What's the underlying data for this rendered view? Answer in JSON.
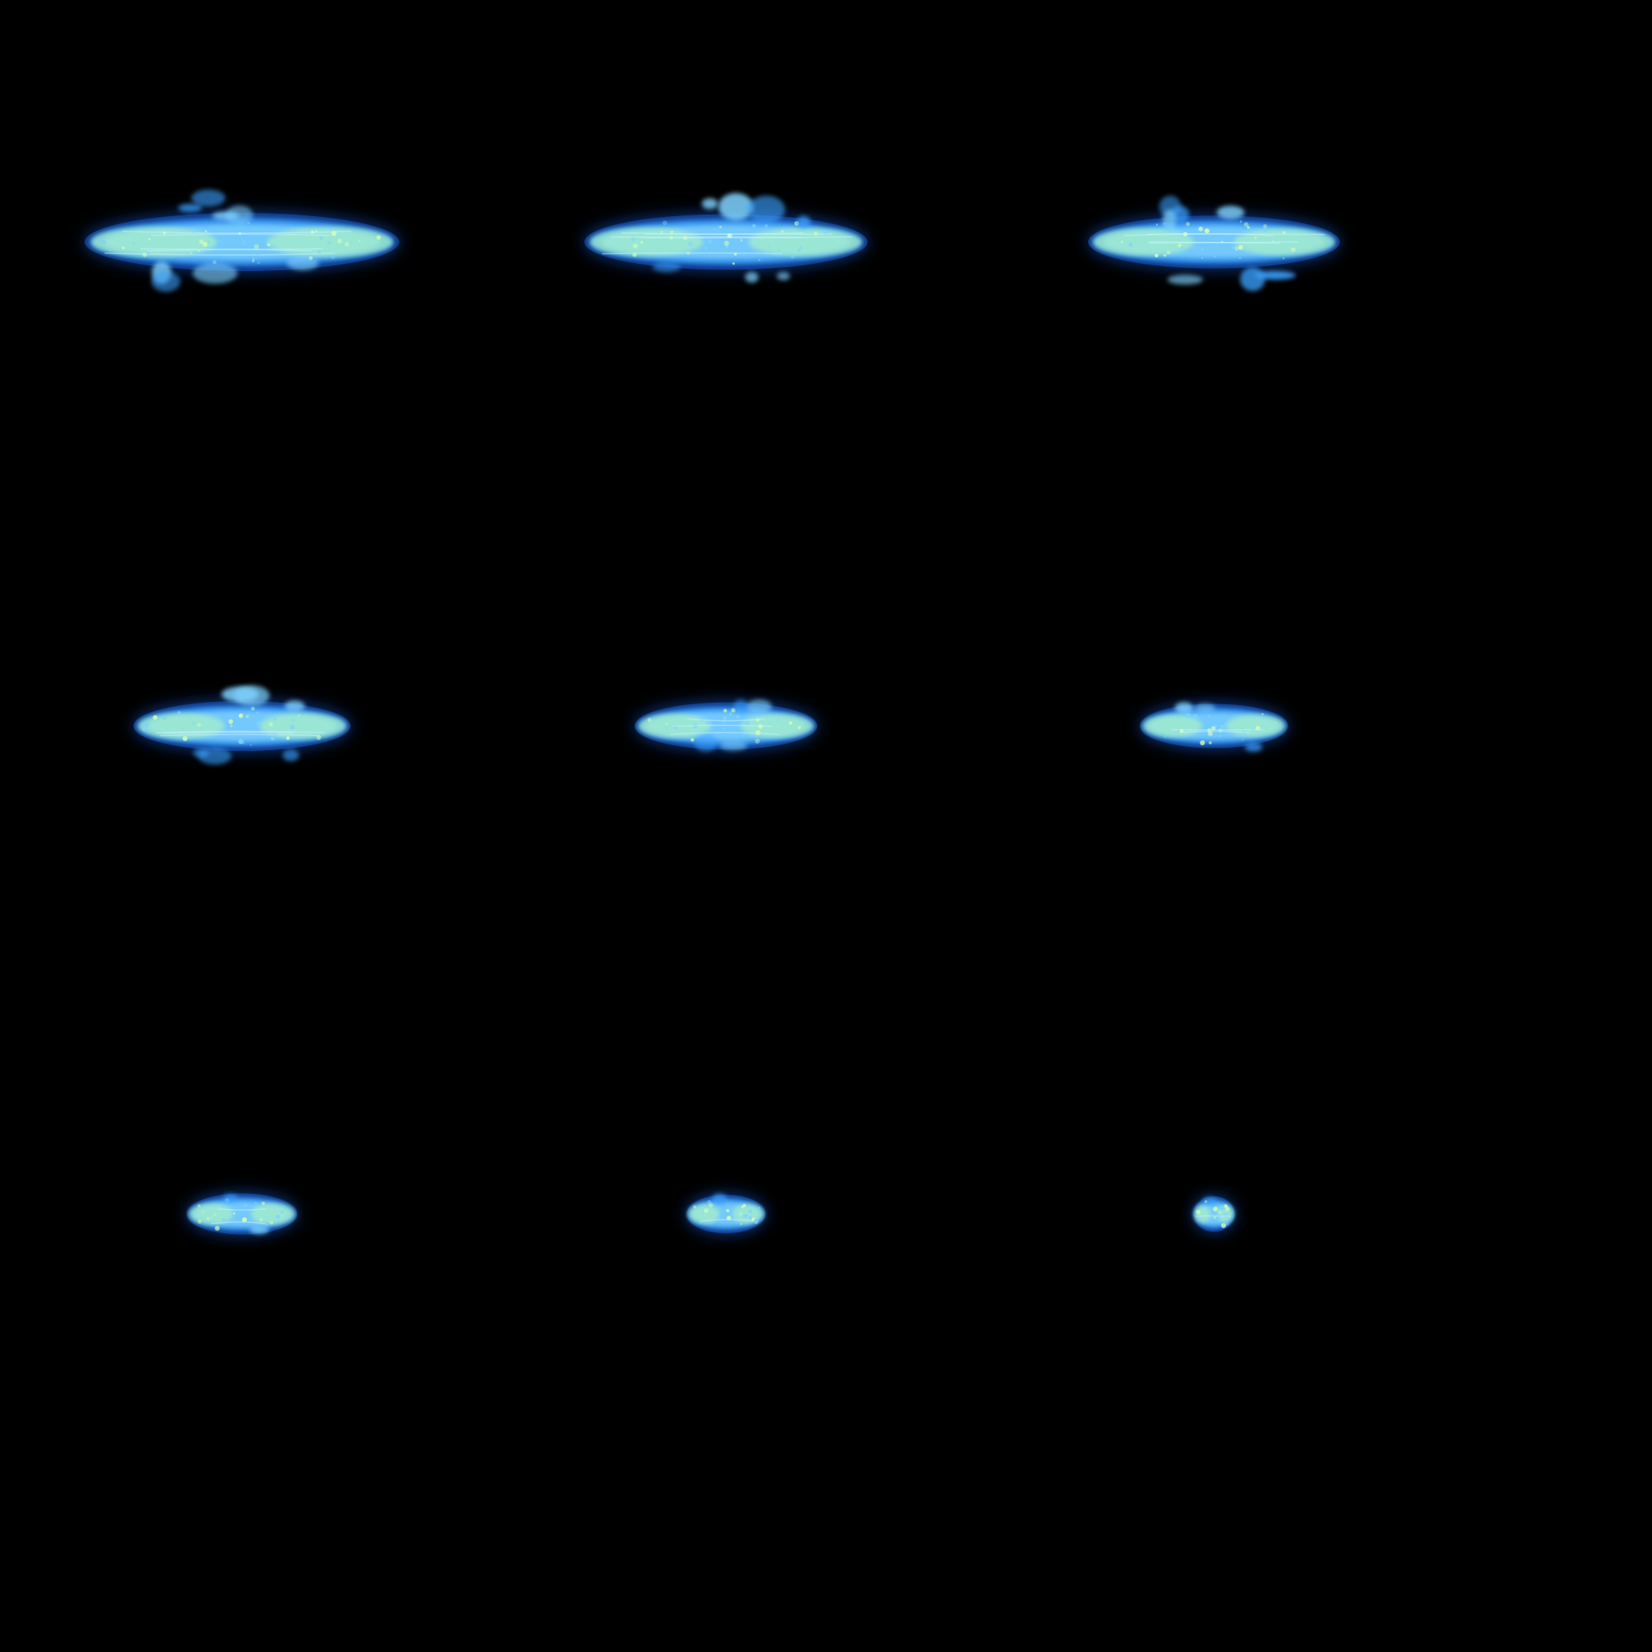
{
  "sprite_sheet": {
    "background": "#000000",
    "grid": {
      "columns": 3,
      "rows": 3
    },
    "colors": {
      "outer_glow": "#1e6dff",
      "mid_blue": "#3aa0ff",
      "light_blue": "#7fd2ff",
      "core_mint": "#a8f0c8",
      "core_yellow": "#d8ffb0"
    },
    "frames": [
      {
        "index": 1,
        "stage": "full-burst",
        "size": 1.0,
        "turbulence": 1.0
      },
      {
        "index": 2,
        "stage": "full-burst",
        "size": 0.9,
        "turbulence": 0.9
      },
      {
        "index": 3,
        "stage": "dissipating",
        "size": 0.8,
        "turbulence": 0.85
      },
      {
        "index": 4,
        "stage": "dissipating",
        "size": 0.69,
        "turbulence": 0.7
      },
      {
        "index": 5,
        "stage": "fading",
        "size": 0.58,
        "turbulence": 0.45
      },
      {
        "index": 6,
        "stage": "fading",
        "size": 0.47,
        "turbulence": 0.35
      },
      {
        "index": 7,
        "stage": "residual",
        "size": 0.35,
        "turbulence": 0.2
      },
      {
        "index": 8,
        "stage": "residual",
        "size": 0.25,
        "turbulence": 0.15
      },
      {
        "index": 9,
        "stage": "residual",
        "size": 0.13,
        "turbulence": 0.1
      }
    ]
  }
}
